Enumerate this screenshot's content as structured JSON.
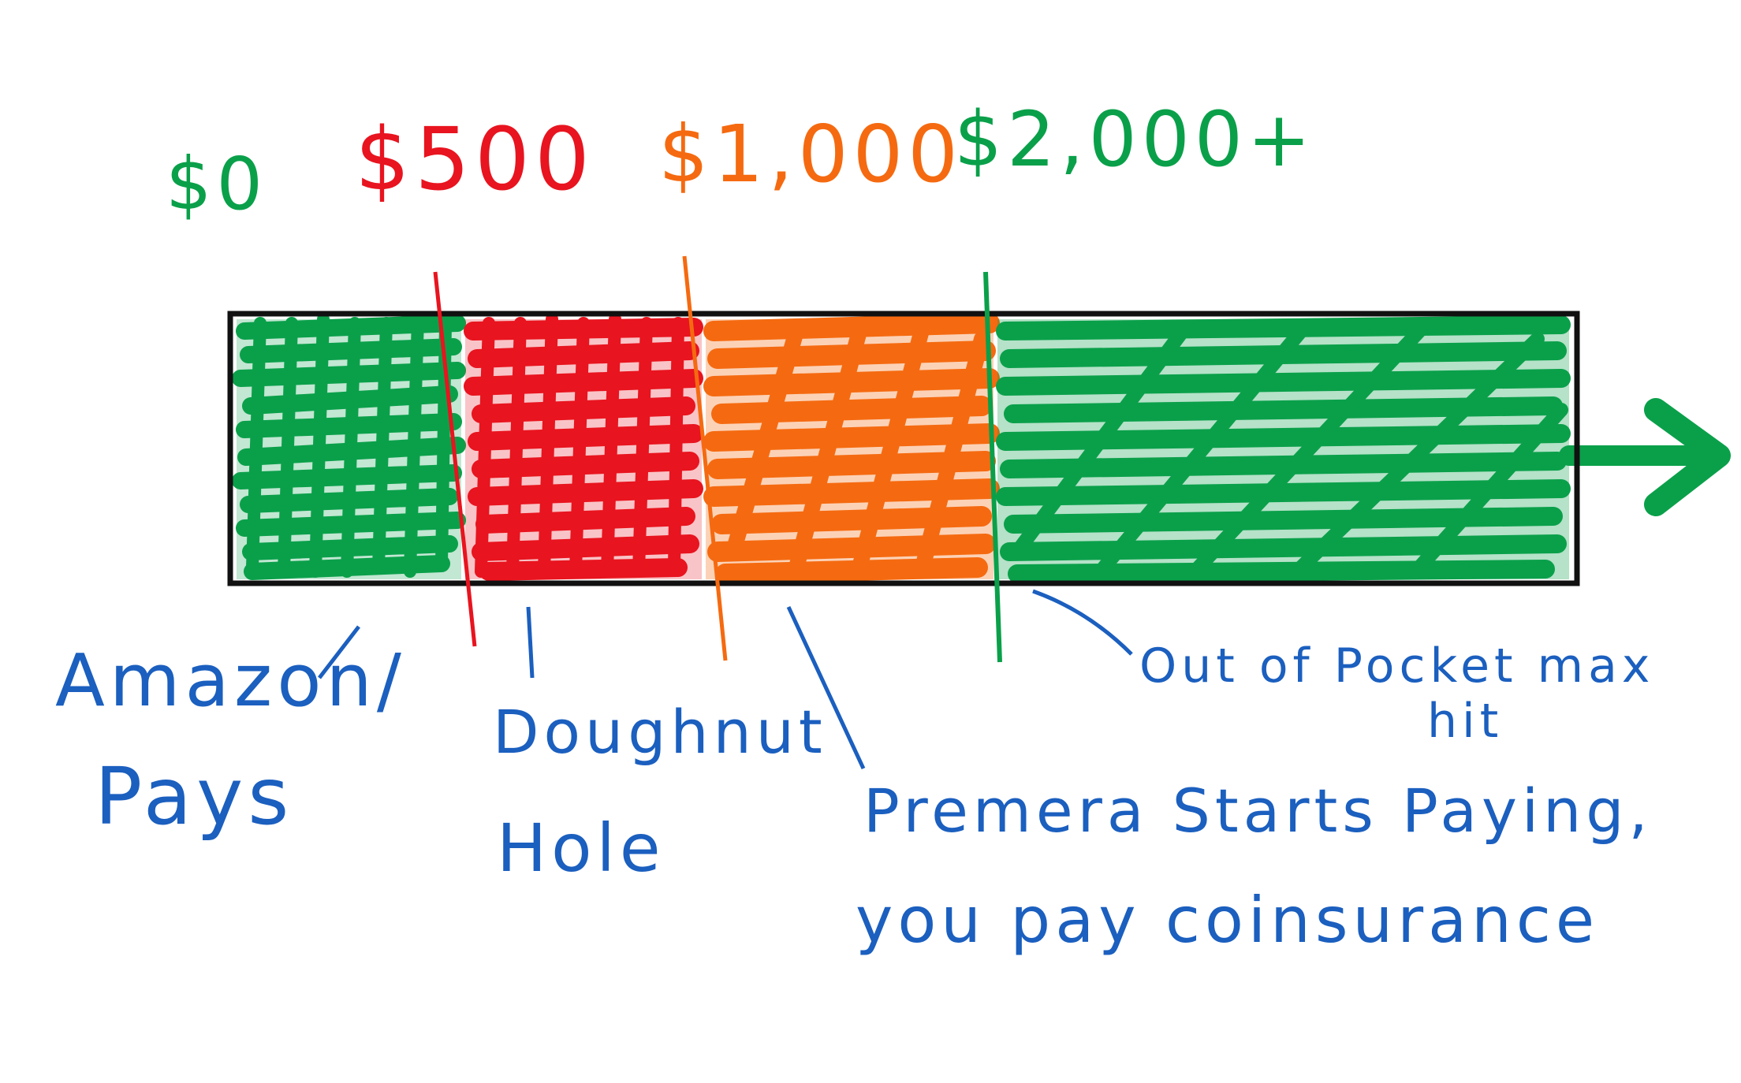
{
  "colors": {
    "green": "#0aa04a",
    "red": "#e8141f",
    "orange": "#f56a10",
    "blue": "#1b5fbf",
    "black": "#111111"
  },
  "thresholds": [
    {
      "label": "$0",
      "color": "green"
    },
    {
      "label": "$500",
      "color": "red"
    },
    {
      "label": "$1,000",
      "color": "orange"
    },
    {
      "label": "$2,000+",
      "color": "green"
    }
  ],
  "segments": [
    {
      "name": "amazon-pays",
      "color": "green"
    },
    {
      "name": "doughnut-hole",
      "color": "red"
    },
    {
      "name": "premera-coinsurance",
      "color": "orange"
    },
    {
      "name": "out-of-pocket-max",
      "color": "green"
    }
  ],
  "annotations": {
    "amazon": {
      "line1": "Amazon/",
      "line2": "Pays"
    },
    "doughnut": {
      "line1": "Doughnut",
      "line2": "Hole"
    },
    "premera": {
      "line1": "Premera Starts Paying,",
      "line2": "you pay coinsurance"
    },
    "oop": {
      "line1": "Out of Pocket max",
      "line2": "hit"
    }
  }
}
